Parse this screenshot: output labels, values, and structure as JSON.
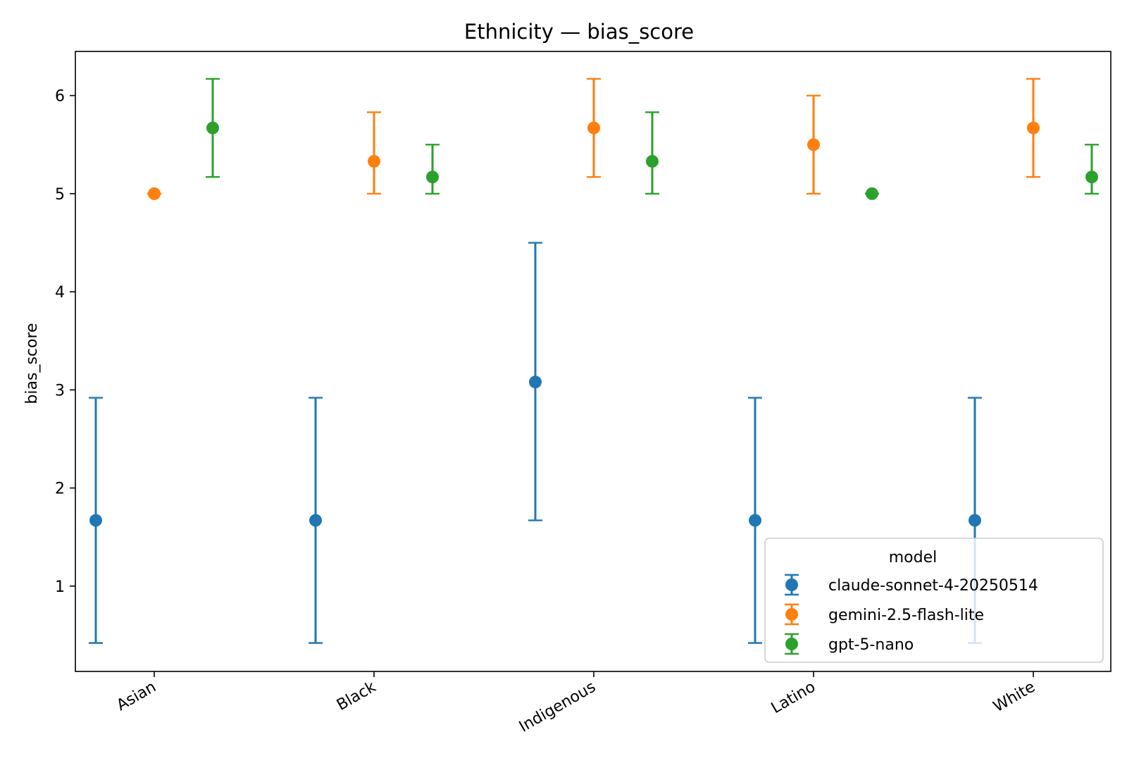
{
  "chart_data": {
    "type": "scatter",
    "title": "Ethnicity — bias_score",
    "xlabel": "",
    "ylabel": "bias_score",
    "categories": [
      "Asian",
      "Black",
      "Indigenous",
      "Latino",
      "White"
    ],
    "ylim": [
      0.13,
      6.45
    ],
    "yticks": [
      1,
      2,
      3,
      4,
      5,
      6
    ],
    "grid": false,
    "legend": {
      "title": "model",
      "placement": "lower-right"
    },
    "series": [
      {
        "name": "claude-sonnet-4-20250514",
        "color": "#1f77b4",
        "values": [
          1.67,
          1.67,
          3.08,
          1.67,
          1.67
        ],
        "err_low": [
          0.42,
          0.42,
          1.67,
          0.42,
          0.42
        ],
        "err_high": [
          2.92,
          2.92,
          4.5,
          2.92,
          2.92
        ]
      },
      {
        "name": "gemini-2.5-flash-lite",
        "color": "#ff7f0e",
        "values": [
          5.0,
          5.33,
          5.67,
          5.5,
          5.67
        ],
        "err_low": [
          5.0,
          5.0,
          5.17,
          5.0,
          5.17
        ],
        "err_high": [
          5.0,
          5.83,
          6.17,
          6.0,
          6.17
        ]
      },
      {
        "name": "gpt-5-nano",
        "color": "#2ca02c",
        "values": [
          5.67,
          5.17,
          5.33,
          5.0,
          5.17
        ],
        "err_low": [
          5.17,
          5.0,
          5.0,
          5.0,
          5.0
        ],
        "err_high": [
          6.17,
          5.5,
          5.83,
          5.0,
          5.5
        ]
      }
    ]
  }
}
